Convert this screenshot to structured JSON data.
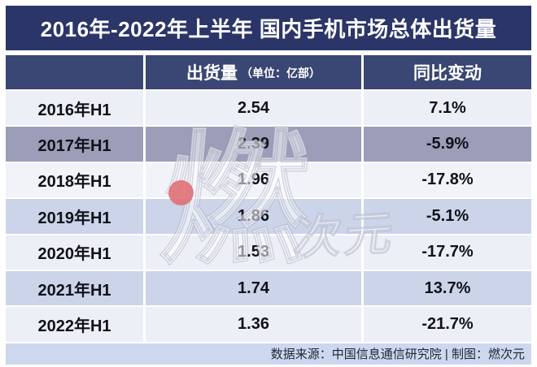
{
  "title": "2016年-2022年上半年 国内手机市场总体出货量",
  "chart_data": {
    "type": "table",
    "title": "2016年-2022年上半年 国内手机市场总体出货量",
    "categories": [
      "2016年H1",
      "2017年H1",
      "2018年H1",
      "2019年H1",
      "2020年H1",
      "2021年H1",
      "2022年H1"
    ],
    "series": [
      {
        "name": "出货量（单位：亿部）",
        "values": [
          2.54,
          2.39,
          1.96,
          1.86,
          1.53,
          1.74,
          1.36
        ]
      },
      {
        "name": "同比变动",
        "values": [
          "7.1%",
          "-5.9%",
          "-17.8%",
          "-5.1%",
          "-17.7%",
          "13.7%",
          "-21.7%"
        ]
      }
    ]
  },
  "table": {
    "header": {
      "period_label": "",
      "shipments_label": "出货量",
      "shipments_unit": "（单位：亿部）",
      "yoy_label": "同比变动"
    },
    "rows": [
      {
        "period": "2016年H1",
        "shipments": "2.54",
        "yoy": "7.1%"
      },
      {
        "period": "2017年H1",
        "shipments": "2.39",
        "yoy": "-5.9%"
      },
      {
        "period": "2018年H1",
        "shipments": "1.96",
        "yoy": "-17.8%"
      },
      {
        "period": "2019年H1",
        "shipments": "1.86",
        "yoy": "-5.1%"
      },
      {
        "period": "2020年H1",
        "shipments": "1.53",
        "yoy": "-17.7%"
      },
      {
        "period": "2021年H1",
        "shipments": "1.74",
        "yoy": "13.7%"
      },
      {
        "period": "2022年H1",
        "shipments": "1.36",
        "yoy": "-21.7%"
      }
    ]
  },
  "footer": {
    "text": "数据来源：中国信息通信研究院 | 制图：燃次元"
  },
  "watermark": {
    "main": "燃",
    "sub": "次元"
  },
  "colors": {
    "title_bar": "#2b3568",
    "header_bar": "#3a4673",
    "row_light": "#edeff7",
    "row_dark": "#9b9db9",
    "row_mid": "#ccd4ea",
    "footer_bg": "#cdd7ee",
    "watermark_dot": "#e0696f",
    "text_dark": "#101218",
    "text_white": "#ffffff"
  }
}
